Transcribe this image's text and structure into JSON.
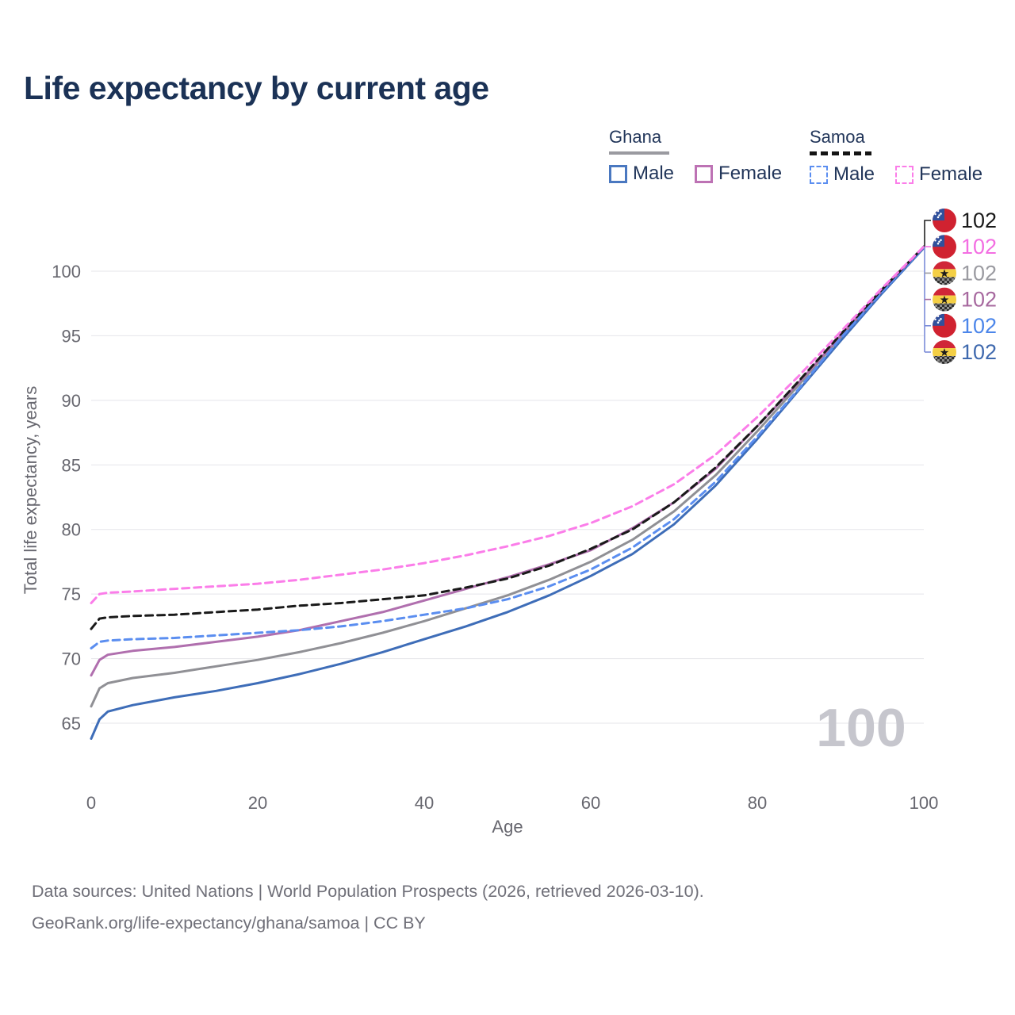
{
  "title": "Life expectancy by current age",
  "legend": {
    "groups": [
      {
        "label": "Ghana",
        "swatch_style": "solid",
        "swatch_color": "#9a9aa0",
        "items": [
          {
            "label": "Male",
            "color": "#4a78c0",
            "dashed": false
          },
          {
            "label": "Female",
            "color": "#bd72b4",
            "dashed": false
          }
        ]
      },
      {
        "label": "Samoa",
        "swatch_style": "dashed",
        "swatch_color": "#141414",
        "items": [
          {
            "label": "Male",
            "color": "#5b8ef0",
            "dashed": true
          },
          {
            "label": "Female",
            "color": "#fb7de9",
            "dashed": true
          }
        ]
      }
    ]
  },
  "chart_data": {
    "type": "line",
    "title": "Life expectancy by current age",
    "xlabel": "Age",
    "ylabel": "Total life expectancy, years",
    "xlim": [
      0,
      100
    ],
    "ylim": [
      63,
      103
    ],
    "x_ticks": [
      0,
      20,
      40,
      60,
      80,
      100
    ],
    "y_ticks": [
      65,
      70,
      75,
      80,
      85,
      90,
      95,
      100
    ],
    "grid": "horizontal",
    "legend_position": "top-right",
    "watermark": "100",
    "x": [
      0,
      1,
      2,
      5,
      10,
      15,
      20,
      25,
      30,
      35,
      40,
      45,
      50,
      55,
      60,
      65,
      70,
      75,
      80,
      85,
      90,
      95,
      100
    ],
    "series": [
      {
        "id": "ghana-total",
        "name": "Ghana Total",
        "country": "Ghana",
        "sex": "Total",
        "color": "#909095",
        "dash": false,
        "values": [
          66.3,
          67.7,
          68.1,
          68.5,
          68.9,
          69.4,
          69.9,
          70.5,
          71.2,
          72.0,
          72.9,
          73.9,
          74.9,
          76.1,
          77.5,
          79.2,
          81.4,
          84.2,
          87.6,
          91.2,
          94.9,
          98.5,
          101.85
        ]
      },
      {
        "id": "ghana-male",
        "name": "Ghana Male",
        "country": "Ghana",
        "sex": "Male",
        "color": "#3e6db8",
        "dash": false,
        "values": [
          63.8,
          65.3,
          65.9,
          66.4,
          67.0,
          67.5,
          68.1,
          68.8,
          69.6,
          70.5,
          71.5,
          72.5,
          73.6,
          74.9,
          76.4,
          78.1,
          80.4,
          83.4,
          87.0,
          90.8,
          94.6,
          98.3,
          101.8
        ]
      },
      {
        "id": "ghana-female",
        "name": "Ghana Female",
        "country": "Ghana",
        "sex": "Female",
        "color": "#b06fae",
        "dash": false,
        "values": [
          68.7,
          69.9,
          70.3,
          70.6,
          70.9,
          71.3,
          71.7,
          72.2,
          72.9,
          73.6,
          74.5,
          75.4,
          76.3,
          77.3,
          78.4,
          80.1,
          82.1,
          84.7,
          88.0,
          91.4,
          95.0,
          98.5,
          101.9
        ]
      },
      {
        "id": "samoa-male",
        "name": "Samoa Male",
        "country": "Samoa",
        "sex": "Male",
        "color": "#5b8ef0",
        "dash": true,
        "values": [
          70.8,
          71.3,
          71.4,
          71.5,
          71.6,
          71.8,
          72.0,
          72.2,
          72.5,
          72.9,
          73.4,
          73.9,
          74.6,
          75.6,
          76.9,
          78.6,
          80.8,
          83.7,
          87.2,
          90.9,
          94.8,
          98.4,
          101.85
        ]
      },
      {
        "id": "samoa-total",
        "name": "Samoa Total",
        "country": "Samoa",
        "sex": "Total",
        "color": "#1a1a1a",
        "dash": true,
        "values": [
          72.3,
          73.1,
          73.2,
          73.3,
          73.4,
          73.6,
          73.8,
          74.1,
          74.3,
          74.6,
          74.9,
          75.5,
          76.2,
          77.2,
          78.5,
          80.0,
          82.1,
          84.8,
          88.0,
          91.5,
          95.1,
          98.6,
          101.9
        ]
      },
      {
        "id": "samoa-female",
        "name": "Samoa Female",
        "country": "Samoa",
        "sex": "Female",
        "color": "#fb7de9",
        "dash": true,
        "values": [
          74.3,
          75.0,
          75.1,
          75.2,
          75.4,
          75.6,
          75.8,
          76.1,
          76.5,
          76.9,
          77.4,
          78.0,
          78.7,
          79.5,
          80.5,
          81.8,
          83.5,
          85.8,
          88.7,
          91.9,
          95.3,
          98.7,
          101.9
        ]
      }
    ],
    "end_labels": [
      {
        "flag": "samoa",
        "series": "Samoa Total",
        "value": "102",
        "color": "#1a1a1a",
        "connector": "#222222"
      },
      {
        "flag": "samoa",
        "series": "Samoa Female",
        "value": "102",
        "color": "#f36ee2",
        "connector": "#f36ee2"
      },
      {
        "flag": "ghana",
        "series": "Ghana Total",
        "value": "102",
        "color": "#9b9ba1",
        "connector": "#9b9ba1"
      },
      {
        "flag": "ghana",
        "series": "Ghana Female",
        "value": "102",
        "color": "#a7699f",
        "connector": "#a7699f"
      },
      {
        "flag": "samoa",
        "series": "Samoa Male",
        "value": "102",
        "color": "#4c86ea",
        "connector": "#7b8cd8"
      },
      {
        "flag": "ghana",
        "series": "Ghana Male",
        "value": "102",
        "color": "#3f69ae",
        "connector": "#7b8cd8"
      }
    ],
    "flag_colors": {
      "samoa_red": "#d02230",
      "samoa_blue": "#30509c",
      "samoa_star": "#ffffff",
      "ghana_red": "#d02637",
      "ghana_yellow": "#f4cf45",
      "ghana_green_dark": "#2e2e2e",
      "ghana_green_light": "#8d8d8d",
      "ghana_star": "#1c1c1c"
    }
  },
  "footer": {
    "line1": "Data sources: United Nations | World Population Prospects (2026, retrieved 2026-03-10).",
    "line2": "GeoRank.org/life-expectancy/ghana/samoa | CC BY"
  }
}
